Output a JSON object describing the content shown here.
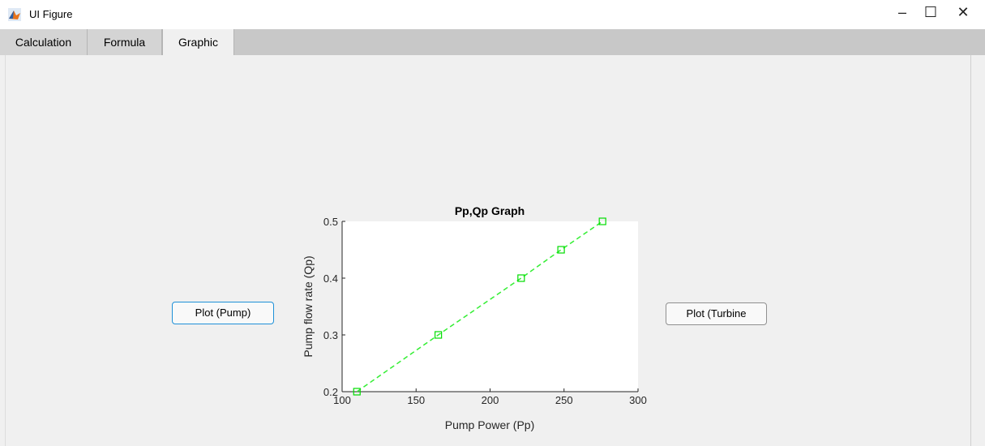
{
  "window": {
    "title": "UI Figure"
  },
  "window_controls": {
    "minimize": "–",
    "maximize": "☐",
    "close": "✕"
  },
  "tabs": [
    {
      "label": "Calculation",
      "active": false
    },
    {
      "label": "Formula",
      "active": false
    },
    {
      "label": "Graphic",
      "active": true
    }
  ],
  "buttons": {
    "plot_pump": "Plot (Pump)",
    "plot_turbine": "Plot (Turbine"
  },
  "colors": {
    "line": "#33ee33",
    "marker": "#00dd00",
    "pump_button_border": "#1e90d8"
  },
  "chart_data": {
    "type": "line",
    "title": "Pp,Qp Graph",
    "xlabel": "Pump Power (Pp)",
    "ylabel": "Pump flow rate (Qp)",
    "xlim": [
      100,
      300
    ],
    "ylim": [
      0.2,
      0.5
    ],
    "xticks": [
      100,
      150,
      200,
      250,
      300
    ],
    "yticks": [
      0.2,
      0.3,
      0.4,
      0.5
    ],
    "x": [
      110,
      165,
      221,
      248,
      276
    ],
    "y": [
      0.2,
      0.3,
      0.4,
      0.45,
      0.5
    ],
    "line_style": "dashed",
    "marker": "square",
    "grid": false
  }
}
